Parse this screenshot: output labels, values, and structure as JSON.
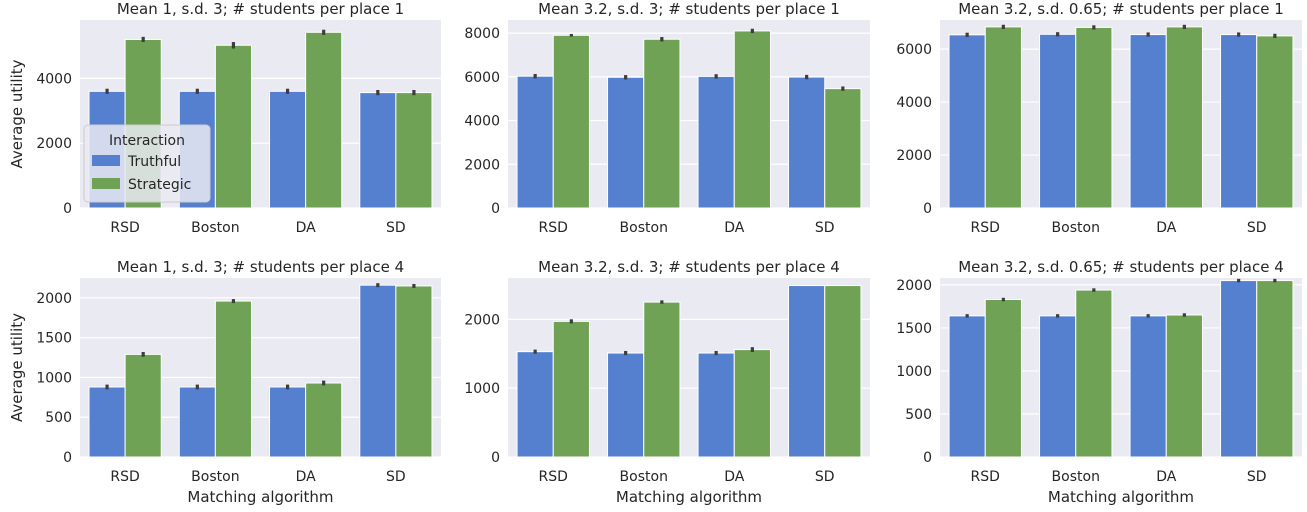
{
  "figure": {
    "xlabel": "Matching algorithm",
    "ylabel": "Average utility",
    "legend": {
      "title": "Interaction",
      "entries": [
        {
          "name": "Truthful",
          "color": "#5580d0"
        },
        {
          "name": "Strategic",
          "color": "#6fa254"
        }
      ],
      "placement": "inside left of top-left panel"
    }
  },
  "chart_data": [
    {
      "type": "bar",
      "title": "Mean 1, s.d. 3; # students per place 1",
      "categories": [
        "RSD",
        "Boston",
        "DA",
        "SD"
      ],
      "series": [
        {
          "name": "Truthful",
          "values": [
            3600,
            3600,
            3600,
            3560
          ],
          "err": [
            80,
            80,
            80,
            80
          ]
        },
        {
          "name": "Strategic",
          "values": [
            5200,
            5020,
            5420,
            3560
          ],
          "err": [
            80,
            100,
            80,
            80
          ]
        }
      ],
      "ylim": [
        0,
        5800
      ],
      "yticks": [
        0,
        2000,
        4000
      ],
      "xlabel": "",
      "ylabel": "Average utility",
      "grid": true
    },
    {
      "type": "bar",
      "title": "Mean 3.2, s.d. 3; # students per place 1",
      "categories": [
        "RSD",
        "Boston",
        "DA",
        "SD"
      ],
      "series": [
        {
          "name": "Truthful",
          "values": [
            6030,
            5980,
            6020,
            5990
          ],
          "err": [
            100,
            100,
            100,
            100
          ]
        },
        {
          "name": "Strategic",
          "values": [
            7900,
            7720,
            8100,
            5460
          ],
          "err": [
            60,
            100,
            100,
            100
          ]
        }
      ],
      "ylim": [
        0,
        8600
      ],
      "yticks": [
        0,
        2000,
        4000,
        6000,
        8000
      ],
      "xlabel": "",
      "ylabel": "",
      "grid": true
    },
    {
      "type": "bar",
      "title": "Mean 3.2, s.d. 0.65; # students per place 1",
      "categories": [
        "RSD",
        "Boston",
        "DA",
        "SD"
      ],
      "series": [
        {
          "name": "Truthful",
          "values": [
            6540,
            6560,
            6550,
            6550
          ],
          "err": [
            80,
            80,
            80,
            80
          ]
        },
        {
          "name": "Strategic",
          "values": [
            6840,
            6820,
            6840,
            6500
          ],
          "err": [
            80,
            80,
            80,
            80
          ]
        }
      ],
      "ylim": [
        0,
        7100
      ],
      "yticks": [
        0,
        2000,
        4000,
        6000
      ],
      "xlabel": "",
      "ylabel": "",
      "grid": true
    },
    {
      "type": "bar",
      "title": "Mean 1, s.d. 3; # students per place 4",
      "categories": [
        "RSD",
        "Boston",
        "DA",
        "SD"
      ],
      "series": [
        {
          "name": "Truthful",
          "values": [
            880,
            880,
            880,
            2160
          ],
          "err": [
            30,
            30,
            30,
            25
          ]
        },
        {
          "name": "Strategic",
          "values": [
            1290,
            1960,
            930,
            2150
          ],
          "err": [
            30,
            25,
            30,
            25
          ]
        }
      ],
      "ylim": [
        0,
        2250
      ],
      "yticks": [
        0,
        500,
        1000,
        1500,
        2000
      ],
      "xlabel": "Matching algorithm",
      "ylabel": "Average utility",
      "grid": true
    },
    {
      "type": "bar",
      "title": "Mean 3.2, s.d. 3; # students per place 4",
      "categories": [
        "RSD",
        "Boston",
        "DA",
        "SD"
      ],
      "series": [
        {
          "name": "Truthful",
          "values": [
            1530,
            1510,
            1510,
            2490
          ],
          "err": [
            30,
            30,
            30,
            0
          ]
        },
        {
          "name": "Strategic",
          "values": [
            1970,
            2250,
            1560,
            2490
          ],
          "err": [
            30,
            25,
            35,
            0
          ]
        }
      ],
      "ylim": [
        0,
        2600
      ],
      "yticks": [
        0,
        1000,
        2000
      ],
      "xlabel": "Matching algorithm",
      "ylabel": "",
      "grid": true
    },
    {
      "type": "bar",
      "title": "Mean 3.2, s.d. 0.65; # students per place 4",
      "categories": [
        "RSD",
        "Boston",
        "DA",
        "SD"
      ],
      "series": [
        {
          "name": "Truthful",
          "values": [
            1640,
            1640,
            1640,
            2050
          ],
          "err": [
            20,
            20,
            20,
            20
          ]
        },
        {
          "name": "Strategic",
          "values": [
            1830,
            1940,
            1650,
            2050
          ],
          "err": [
            20,
            20,
            20,
            20
          ]
        }
      ],
      "ylim": [
        0,
        2080
      ],
      "yticks": [
        0,
        500,
        1000,
        1500,
        2000
      ],
      "xlabel": "Matching algorithm",
      "ylabel": "",
      "grid": true
    }
  ]
}
